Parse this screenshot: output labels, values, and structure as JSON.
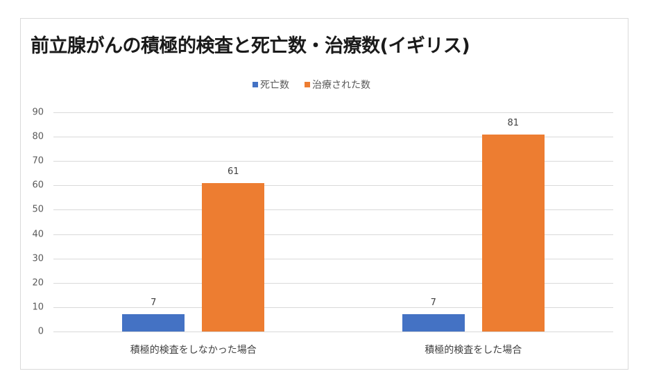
{
  "chart_data": {
    "type": "bar",
    "title": "前立腺がんの積極的検査と死亡数・治療数(イギリス)",
    "categories": [
      "積極的検査をしなかった場合",
      "積極的検査をした場合"
    ],
    "series": [
      {
        "name": "死亡数",
        "color": "#4472c4",
        "values": [
          7,
          7
        ]
      },
      {
        "name": "治療された数",
        "color": "#ed7d31",
        "values": [
          61,
          81
        ]
      }
    ],
    "xlabel": "",
    "ylabel": "",
    "ylim": [
      0,
      90
    ],
    "yticks": [
      "0",
      "10",
      "20",
      "30",
      "40",
      "50",
      "60",
      "70",
      "80",
      "90"
    ],
    "grid": true,
    "legend_position": "top",
    "data_labels": true
  },
  "legend": [
    {
      "label": "死亡数",
      "color": "#4472c4"
    },
    {
      "label": "治療された数",
      "color": "#ed7d31"
    }
  ]
}
